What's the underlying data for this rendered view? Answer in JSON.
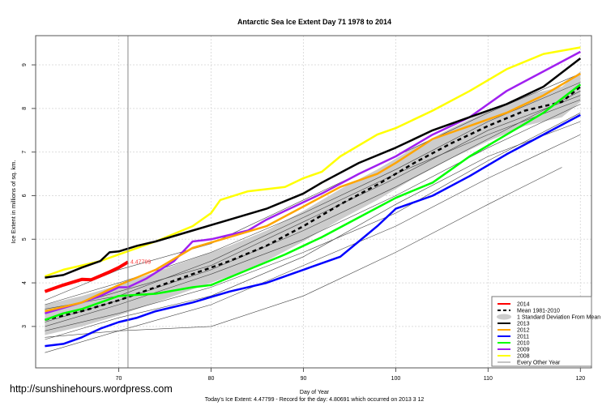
{
  "chart_data": {
    "type": "line",
    "title": "Antarctic Sea Ice Extent Day 71 1978 to 2014",
    "xlabel": "Day of Year",
    "ylabel": "Ice Extent in millions of sq. km.",
    "xlim": [
      61,
      121.2
    ],
    "ylim": [
      2.05,
      9.67
    ],
    "xticks": [
      70,
      80,
      90,
      100,
      110,
      120
    ],
    "yticks": [
      3,
      4,
      5,
      6,
      7,
      8,
      9
    ],
    "grid": true,
    "current_day": 71,
    "current_label": "4.47799",
    "sd_halfwidth": 0.35,
    "mean": {
      "name": "Mean 1981-2010",
      "color": "#000000",
      "x": [
        62,
        66,
        70,
        74,
        78,
        82,
        86,
        90,
        94,
        98,
        102,
        106,
        110,
        114,
        118,
        120
      ],
      "y": [
        3.15,
        3.35,
        3.6,
        3.9,
        4.2,
        4.5,
        4.85,
        5.3,
        5.8,
        6.25,
        6.75,
        7.2,
        7.6,
        7.95,
        8.15,
        8.5
      ]
    },
    "sd_label": "1 Standard Deviation From Mean",
    "other_label": "Every Other Year",
    "other_years": [
      {
        "x": [
          62,
          70,
          80,
          90,
          100,
          110,
          120
        ],
        "y": [
          2.4,
          2.9,
          3.5,
          4.4,
          5.3,
          6.4,
          7.4
        ]
      },
      {
        "x": [
          62,
          70,
          80,
          90,
          100,
          110,
          118
        ],
        "y": [
          2.75,
          2.9,
          3.0,
          3.7,
          4.7,
          5.8,
          6.65
        ]
      },
      {
        "x": [
          62,
          70,
          80,
          90,
          100,
          110,
          120
        ],
        "y": [
          2.9,
          3.3,
          3.9,
          4.7,
          5.6,
          6.8,
          7.9
        ]
      },
      {
        "x": [
          62,
          70,
          80,
          90,
          100,
          110,
          120
        ],
        "y": [
          3.0,
          3.5,
          4.2,
          5.0,
          6.0,
          7.1,
          8.1
        ]
      },
      {
        "x": [
          62,
          70,
          80,
          90,
          100,
          110,
          120
        ],
        "y": [
          3.3,
          3.8,
          4.4,
          5.4,
          6.4,
          7.5,
          8.3
        ]
      },
      {
        "x": [
          62,
          70,
          80,
          90,
          100,
          110,
          120
        ],
        "y": [
          3.5,
          4.0,
          4.7,
          5.6,
          6.6,
          7.7,
          8.6
        ]
      },
      {
        "x": [
          62,
          70,
          80,
          90,
          100,
          110,
          120
        ],
        "y": [
          3.6,
          4.3,
          4.9,
          5.9,
          6.9,
          7.9,
          8.8
        ]
      },
      {
        "x": [
          62,
          70,
          80,
          90,
          100,
          110,
          120
        ],
        "y": [
          2.7,
          3.2,
          3.7,
          4.6,
          5.8,
          6.9,
          7.7
        ]
      },
      {
        "x": [
          62,
          70,
          80,
          90,
          100,
          110,
          120
        ],
        "y": [
          3.1,
          3.6,
          4.3,
          5.2,
          6.2,
          7.3,
          8.4
        ]
      },
      {
        "x": [
          62,
          70,
          80,
          90,
          100,
          110,
          120
        ],
        "y": [
          3.4,
          3.7,
          4.5,
          5.5,
          6.5,
          7.4,
          8.2
        ]
      }
    ],
    "series": [
      {
        "name": "2014",
        "color": "#ff0000",
        "width": 4,
        "x": [
          62,
          64,
          66,
          67,
          69,
          70,
          71
        ],
        "y": [
          3.8,
          3.95,
          4.08,
          4.07,
          4.25,
          4.35,
          4.478
        ]
      },
      {
        "name": "2013",
        "color": "#000000",
        "width": 2.5,
        "x": [
          62,
          64,
          66,
          68,
          69,
          70,
          72,
          74,
          78,
          82,
          86,
          90,
          92,
          96,
          100,
          104,
          108,
          112,
          116,
          120
        ],
        "y": [
          4.12,
          4.18,
          4.35,
          4.5,
          4.7,
          4.72,
          4.85,
          4.95,
          5.2,
          5.45,
          5.7,
          6.05,
          6.3,
          6.75,
          7.1,
          7.5,
          7.8,
          8.1,
          8.5,
          9.15
        ]
      },
      {
        "name": "2012",
        "color": "#ffa500",
        "width": 2.5,
        "x": [
          62,
          66,
          70,
          74,
          78,
          82,
          86,
          90,
          94,
          98,
          100,
          104,
          108,
          112,
          116,
          120
        ],
        "y": [
          3.35,
          3.55,
          3.95,
          4.3,
          4.8,
          5.05,
          5.3,
          5.75,
          6.2,
          6.5,
          6.75,
          7.3,
          7.6,
          7.9,
          8.3,
          8.8
        ]
      },
      {
        "name": "2011",
        "color": "#0000ff",
        "width": 2.5,
        "x": [
          62,
          64,
          66,
          68,
          70,
          72,
          74,
          78,
          82,
          86,
          90,
          94,
          96,
          98,
          100,
          104,
          108,
          112,
          116,
          120
        ],
        "y": [
          2.55,
          2.6,
          2.75,
          2.95,
          3.1,
          3.2,
          3.35,
          3.55,
          3.8,
          4.0,
          4.3,
          4.6,
          4.95,
          5.3,
          5.7,
          6.0,
          6.45,
          6.95,
          7.4,
          7.85
        ]
      },
      {
        "name": "2010",
        "color": "#00ff00",
        "width": 2.5,
        "x": [
          62,
          64,
          66,
          68,
          70,
          74,
          78,
          80,
          84,
          88,
          92,
          96,
          100,
          104,
          108,
          112,
          116,
          120
        ],
        "y": [
          3.15,
          3.3,
          3.4,
          3.55,
          3.7,
          3.75,
          3.9,
          3.95,
          4.3,
          4.65,
          5.05,
          5.5,
          5.95,
          6.3,
          6.9,
          7.4,
          7.9,
          8.55
        ]
      },
      {
        "name": "2009",
        "color": "#a020f0",
        "width": 2.5,
        "x": [
          62,
          66,
          68,
          70,
          71,
          73,
          76,
          78,
          80,
          84,
          86,
          88,
          92,
          96,
          100,
          104,
          108,
          112,
          116,
          120
        ],
        "y": [
          3.3,
          3.55,
          3.7,
          3.9,
          3.9,
          4.1,
          4.5,
          4.95,
          5.0,
          5.2,
          5.45,
          5.65,
          6.05,
          6.5,
          6.9,
          7.4,
          7.8,
          8.4,
          8.85,
          9.3
        ]
      },
      {
        "name": "2008",
        "color": "#ffff00",
        "width": 2.5,
        "x": [
          62,
          64,
          66,
          68,
          70,
          74,
          78,
          80,
          81,
          84,
          88,
          90,
          92,
          94,
          98,
          100,
          104,
          108,
          112,
          116,
          120
        ],
        "y": [
          4.15,
          4.3,
          4.4,
          4.5,
          4.65,
          4.95,
          5.3,
          5.6,
          5.9,
          6.1,
          6.2,
          6.4,
          6.55,
          6.9,
          7.4,
          7.55,
          7.95,
          8.4,
          8.9,
          9.25,
          9.4
        ]
      }
    ],
    "legend": {
      "placement": "bottom-right",
      "entries": [
        "2014",
        "Mean 1981-2010",
        "1 Standard Deviation From Mean",
        "2013",
        "2012",
        "2011",
        "2010",
        "2009",
        "2008",
        "Every Other Year"
      ]
    }
  },
  "watermark": "http://sunshinehours.wordpress.com",
  "footer": "Today's Ice Extent: 4.47799  - Record for the day: 4.80691 which occurred on 2013 3 12"
}
